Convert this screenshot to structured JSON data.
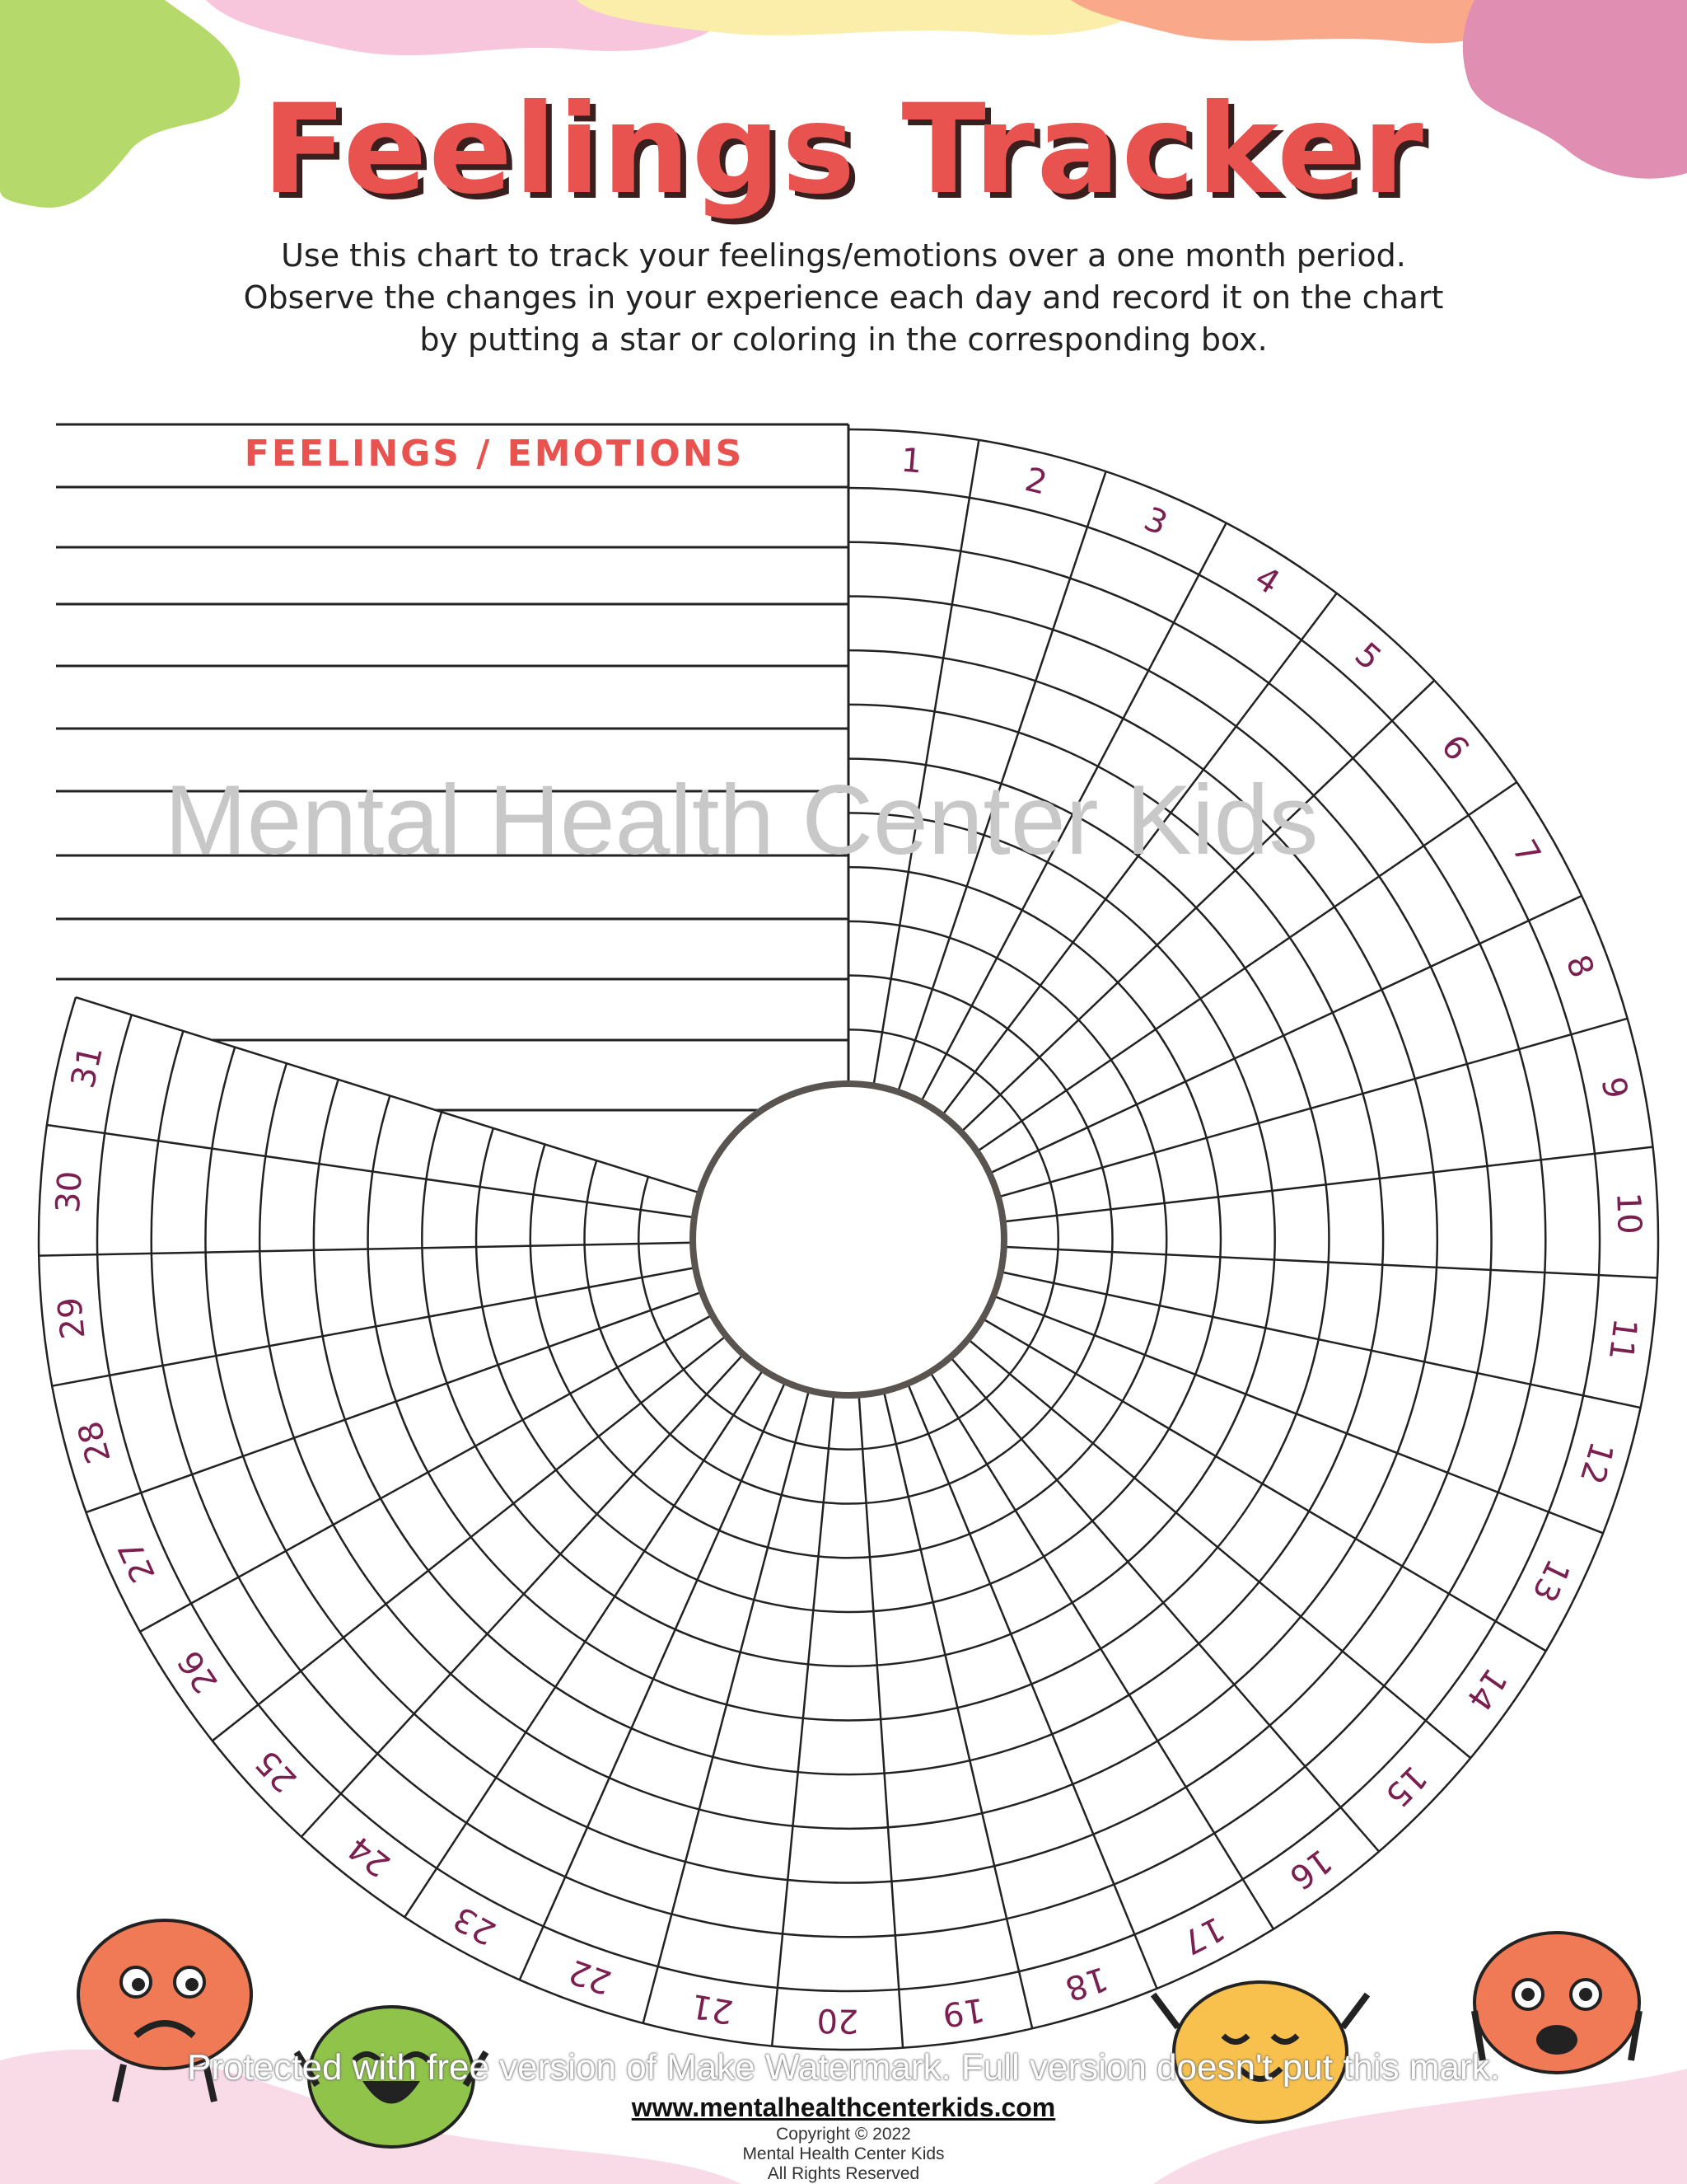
{
  "title": "Feelings Tracker",
  "description": [
    "Use this chart to track your feelings/emotions over a one month period.",
    "Observe the changes in your experience each day and record it on the chart",
    "by putting a star or coloring in the corresponding box."
  ],
  "list_header": "FEELINGS / EMOTIONS",
  "feeling_rows": 11,
  "days": [
    "1",
    "2",
    "3",
    "4",
    "5",
    "6",
    "7",
    "8",
    "9",
    "10",
    "11",
    "12",
    "13",
    "14",
    "15",
    "16",
    "17",
    "18",
    "19",
    "20",
    "21",
    "22",
    "23",
    "24",
    "25",
    "26",
    "27",
    "28",
    "29",
    "30",
    "31"
  ],
  "footer": {
    "url": "www.mentalhealthcenterkids.com",
    "copyright": "Copyright © 2022",
    "org": "Mental Health Center Kids",
    "rights": "All Rights Reserved"
  },
  "watermarks": {
    "brand": "Mental Health Center Kids",
    "notice": "Protected with free version of Make Watermark. Full version doesn't put this mark."
  },
  "colors": {
    "title": "#e8524f",
    "header": "#e8524f",
    "day_labels": "#7a1f4f",
    "inner_ring": "#5a5450",
    "blob_pink": "#f7c6dc",
    "blob_yellow": "#fbeeaa",
    "blob_orange": "#f9a98a",
    "blob_green": "#b5d96a",
    "blob_rose": "#e08fb2"
  }
}
